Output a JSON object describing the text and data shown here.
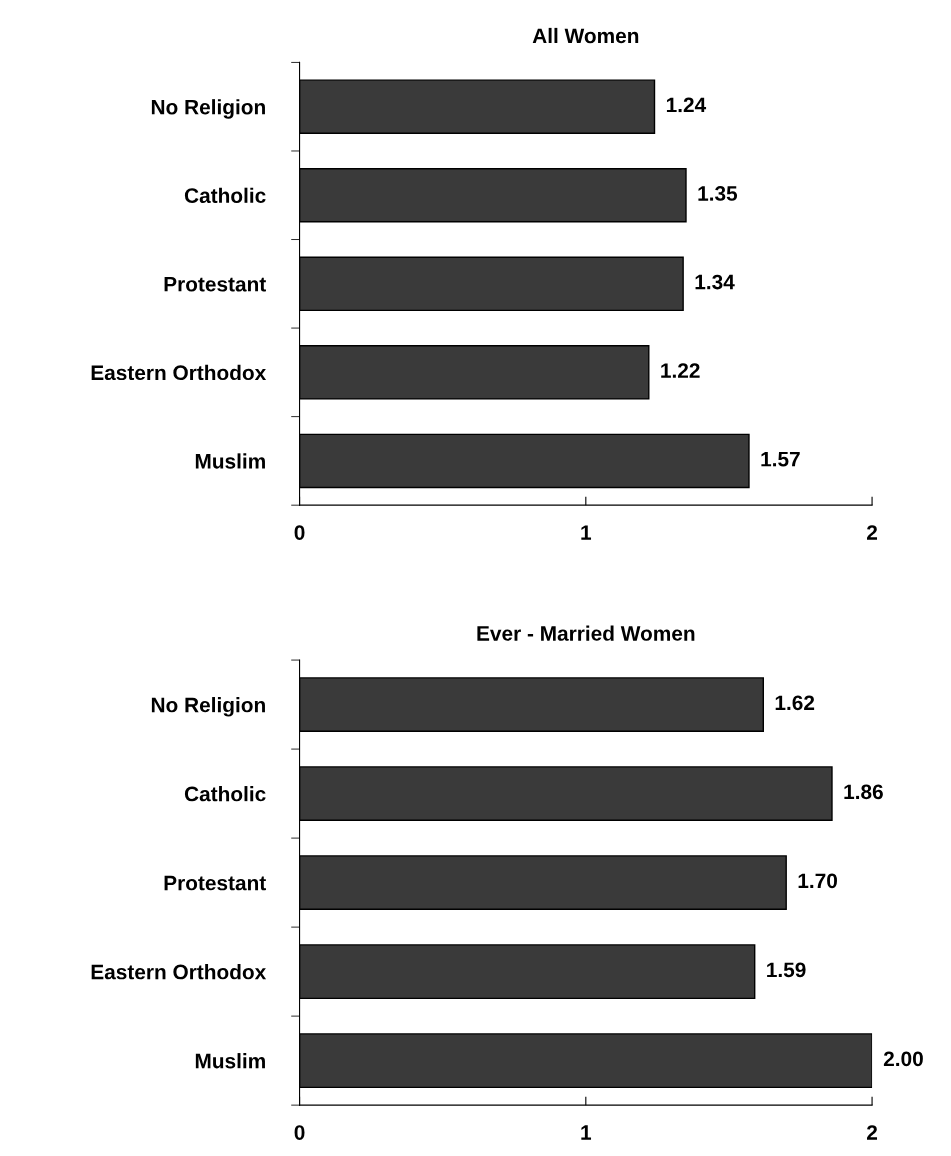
{
  "chart_data": [
    {
      "type": "bar",
      "orientation": "horizontal",
      "title": "All Women",
      "categories": [
        "No Religion",
        "Catholic",
        "Protestant",
        "Eastern Orthodox",
        "Muslim"
      ],
      "values": [
        1.24,
        1.35,
        1.34,
        1.22,
        1.57
      ],
      "value_labels": [
        "1.24",
        "1.35",
        "1.34",
        "1.22",
        "1.57"
      ],
      "color": "#3a3a3a",
      "xlim": [
        0,
        2
      ],
      "xticks": [
        0,
        1,
        2
      ],
      "grid": false,
      "legend": false
    },
    {
      "type": "bar",
      "orientation": "horizontal",
      "title": "Ever - Married Women",
      "categories": [
        "No Religion",
        "Catholic",
        "Protestant",
        "Eastern Orthodox",
        "Muslim"
      ],
      "values": [
        1.62,
        1.86,
        1.7,
        1.59,
        2.0
      ],
      "value_labels": [
        "1.62",
        "1.86",
        "1.70",
        "1.59",
        "2.00"
      ],
      "color": "#3a3a3a",
      "xlim": [
        0,
        2
      ],
      "xticks": [
        0,
        1,
        2
      ],
      "grid": false,
      "legend": false
    }
  ]
}
